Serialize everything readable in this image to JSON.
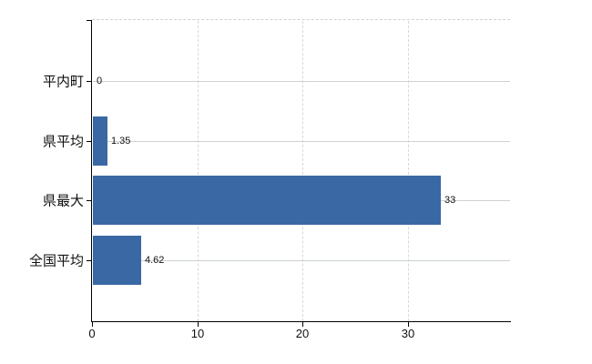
{
  "chart_data": {
    "type": "bar",
    "orientation": "horizontal",
    "title": "",
    "categories": [
      "平内町",
      "県平均",
      "県最大",
      "全国平均"
    ],
    "values": [
      0,
      1.35,
      33,
      4.62
    ],
    "value_labels": [
      "0",
      "1.35",
      "33",
      "4.62"
    ],
    "x_tick_labels": [
      "0",
      "10",
      "20",
      "30"
    ],
    "x_tick_values": [
      0,
      10,
      20,
      30
    ],
    "xlim": [
      0,
      39.7
    ],
    "legend": "none",
    "grid": {
      "horizontal": "solid",
      "vertical": "dashed",
      "top_border": "dashed"
    },
    "colors": {
      "bar": "#3a68a4",
      "h_gridline": "#ccd4cc",
      "v_gridline": "#d8d8d8",
      "axis": "#000000",
      "text": "#111111",
      "background": "#ffffff"
    }
  }
}
